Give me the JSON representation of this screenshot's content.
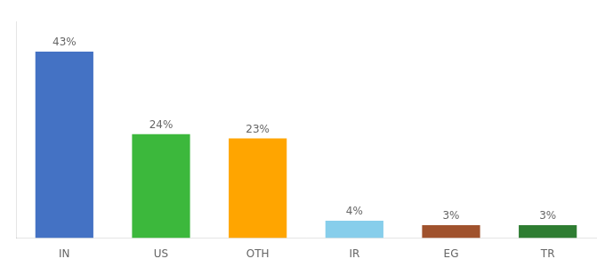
{
  "chart_data": {
    "type": "bar",
    "categories": [
      "IN",
      "US",
      "OTH",
      "IR",
      "EG",
      "TR"
    ],
    "values": [
      43,
      24,
      23,
      4,
      3,
      3
    ],
    "value_labels": [
      "43%",
      "24%",
      "23%",
      "4%",
      "3%",
      "3%"
    ],
    "colors": [
      "#4472C4",
      "#3CB83C",
      "#FFA500",
      "#87CEEB",
      "#A0522D",
      "#2E7D32"
    ],
    "ylim": [
      0,
      50
    ],
    "data_labels": true,
    "tick_labels": "x",
    "grid": false,
    "legend": false
  }
}
